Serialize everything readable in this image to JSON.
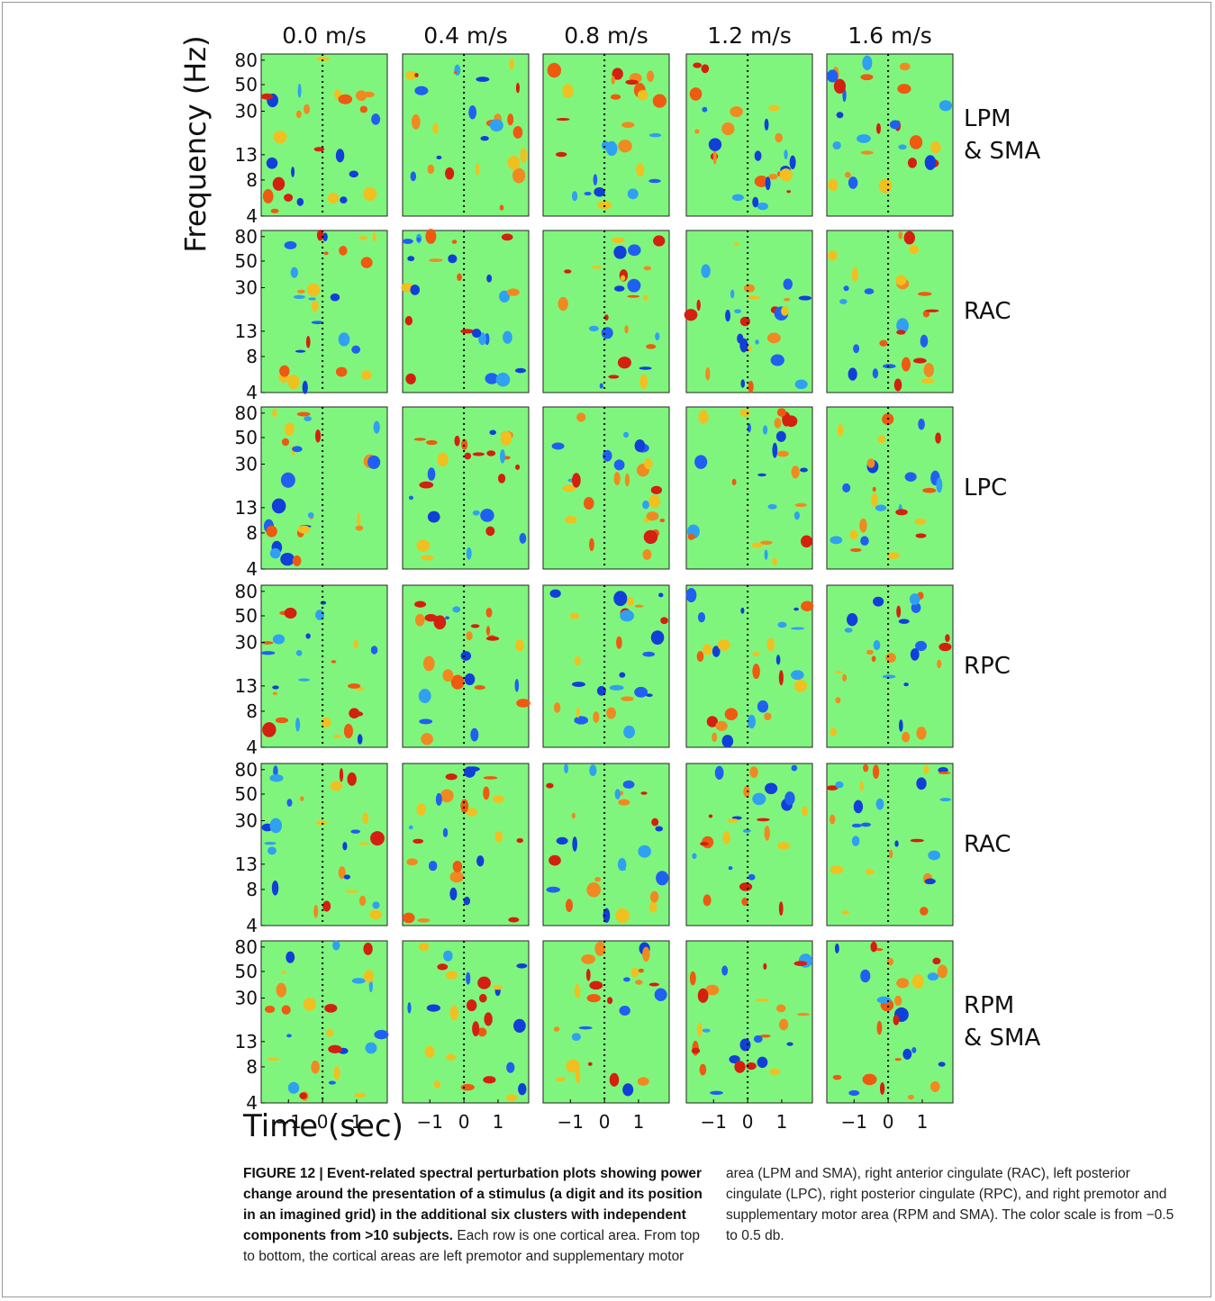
{
  "figure": {
    "column_titles": [
      "0.0 m/s",
      "0.4 m/s",
      "0.8 m/s",
      "1.2 m/s",
      "1.6 m/s"
    ],
    "row_labels": [
      [
        "LPM",
        "& SMA"
      ],
      [
        "RAC"
      ],
      [
        "LPC"
      ],
      [
        "RPC"
      ],
      [
        "RAC"
      ],
      [
        "RPM",
        "& SMA"
      ]
    ],
    "y_axis_label": "Frequency (Hz)",
    "y_log": true,
    "ylim": [
      4,
      90
    ],
    "yticks": [
      80,
      50,
      30,
      13,
      8,
      4
    ],
    "x_axis_label": "Time (sec)",
    "xlim": [
      -1.8,
      1.9
    ],
    "xticks": [
      {
        "value": -1,
        "label": "−1"
      },
      0,
      1
    ]
  },
  "caption": {
    "heading": "FIGURE 12 | Event-related spectral perturbation plots showing power change around the presentation of a stimulus (a digit and its position in an imagined grid) in the additional six clusters with independent components from >10 subjects.",
    "text": "Each row is one cortical area. From top to bottom, the cortical areas are left premotor and supplementary motor area (LPM and SMA), right anterior cingulate (RAC), left posterior cingulate (LPC), right posterior cingulate (RPC), and right premotor and supplementary motor area (RPM and SMA). The color scale is from −0.5 to 0.5 db."
  }
}
